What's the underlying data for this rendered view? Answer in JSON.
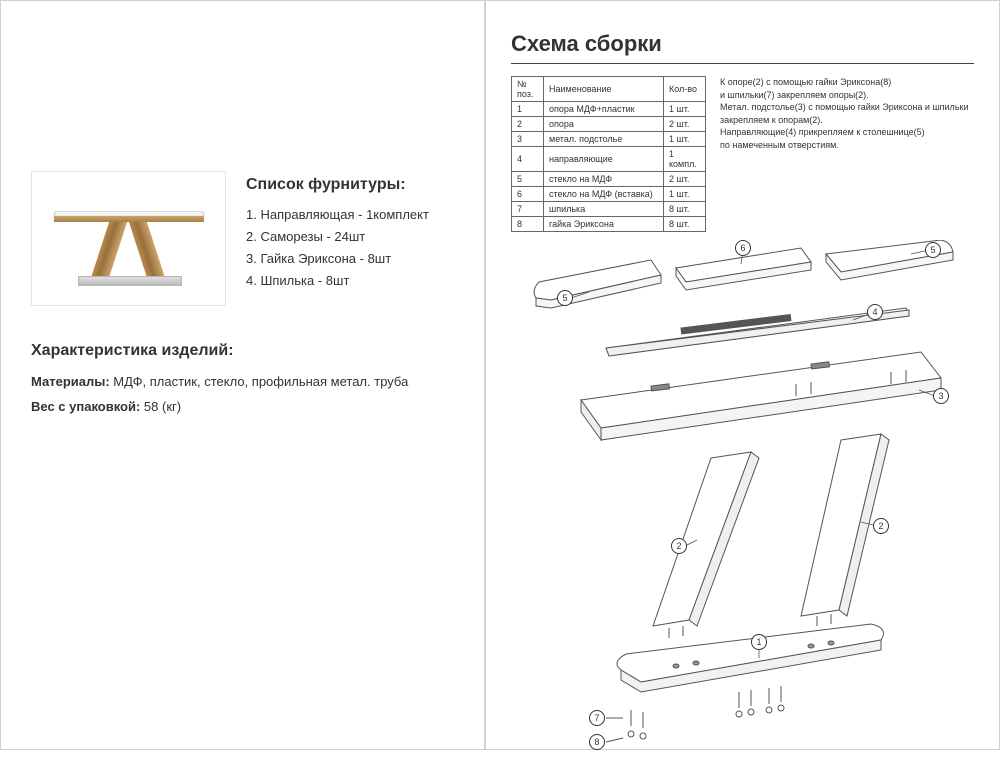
{
  "left": {
    "fittings_title": "Список фурнитуры:",
    "fittings": [
      "1. Направляющая - 1комплект",
      "2. Саморезы - 24шт",
      "3. Гайка Эриксона - 8шт",
      "4. Шпилька - 8шт"
    ],
    "characteristics_title": "Характеристика изделий:",
    "materials_label": "Материалы:",
    "materials_value": " МДФ, пластик, стекло, профильная метал. труба",
    "weight_label": "Вес с упаковкой:",
    "weight_value": " 58 (кг)"
  },
  "right": {
    "title": "Схема сборки",
    "table": {
      "headers": [
        "№ поз.",
        "Наименование",
        "Кол-во"
      ],
      "rows": [
        [
          "1",
          "опора МДФ+пластик",
          "1 шт."
        ],
        [
          "2",
          "опора",
          "2 шт."
        ],
        [
          "3",
          "метал. подстолье",
          "1 шт."
        ],
        [
          "4",
          "направляющие",
          "1 компл."
        ],
        [
          "5",
          "стекло на МДФ",
          "2 шт."
        ],
        [
          "6",
          "стекло на МДФ (вставка)",
          "1 шт."
        ],
        [
          "7",
          "шпилька",
          "8 шт."
        ],
        [
          "8",
          "гайка Эриксона",
          "8 шт."
        ]
      ]
    },
    "instructions": [
      "К опоре(2) с помощью гайки Эриксона(8)",
      "и шпильки(7) закрепляем опоры(2).",
      "Метал. подстолье(3) с помощью гайки Эриксона и шпильки",
      "закрепляем к опорам(2).",
      "Направляющие(4) прикрепляем к столешнице(5)",
      "по намеченным отверстиям."
    ],
    "callouts": {
      "c5a": "5",
      "c6": "6",
      "c5b": "5",
      "c4": "4",
      "c3": "3",
      "c2a": "2",
      "c2b": "2",
      "c1": "1",
      "c7": "7",
      "c8": "8"
    }
  },
  "colors": {
    "border": "#d0d0d0",
    "text": "#333333",
    "line": "#555555",
    "table_border": "#666666"
  }
}
